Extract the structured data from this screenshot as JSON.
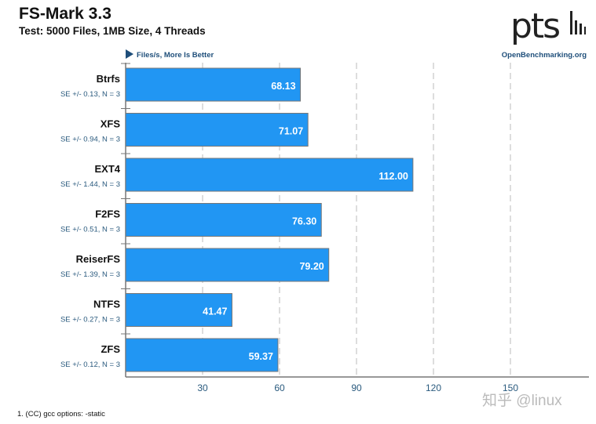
{
  "chart_data": {
    "type": "bar",
    "orientation": "horizontal",
    "title": "FS-Mark 3.3",
    "subtitle": "Test: 5000 Files, 1MB Size, 4 Threads",
    "xlabel": "Files/s, More Is Better",
    "categories": [
      "Btrfs",
      "XFS",
      "EXT4",
      "F2FS",
      "ReiserFS",
      "NTFS",
      "ZFS"
    ],
    "values": [
      68.13,
      71.07,
      112.0,
      76.3,
      79.2,
      41.47,
      59.37
    ],
    "value_labels": [
      "68.13",
      "71.07",
      "112.00",
      "76.30",
      "79.20",
      "41.47",
      "59.37"
    ],
    "errors": [
      "SE +/- 0.13, N = 3",
      "SE +/- 0.94, N = 3",
      "SE +/- 1.44, N = 3",
      "SE +/- 0.51, N = 3",
      "SE +/- 1.39, N = 3",
      "SE +/- 0.27, N = 3",
      "SE +/- 0.12, N = 3"
    ],
    "xticks": [
      "30",
      "60",
      "90",
      "120",
      "150"
    ],
    "xtick_values": [
      30,
      60,
      90,
      120,
      150
    ],
    "xlim": [
      0,
      150
    ],
    "grid": true,
    "bar_color": "#2196f3"
  },
  "brand": {
    "logo": "ptsh",
    "site": "OpenBenchmarking.org"
  },
  "footnote": "1. (CC) gcc options: -static",
  "watermark": "知乎 @linux"
}
